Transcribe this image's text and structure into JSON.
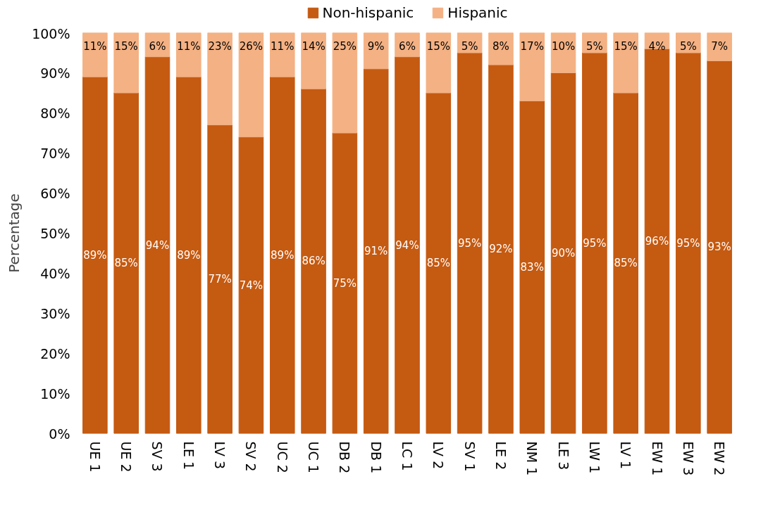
{
  "chart_data": {
    "type": "bar",
    "stacked": true,
    "ylabel": "Percentage",
    "legend": "top",
    "grid": false,
    "categories": [
      "UE 1",
      "UE 2",
      "SV 3",
      "LE 1",
      "LV 3",
      "SV 2",
      "UC 2",
      "UC 1",
      "DB 2",
      "DB 1",
      "LC 1",
      "LV 2",
      "SV 1",
      "LE 2",
      "NM 1",
      "LE 3",
      "LW 1",
      "LV 1",
      "EW 1",
      "EW 3",
      "EW 2"
    ],
    "series": [
      {
        "name": "Non-hispanic",
        "color": "#c55a11",
        "values": [
          89,
          85,
          94,
          89,
          77,
          74,
          89,
          86,
          75,
          91,
          94,
          85,
          95,
          92,
          83,
          90,
          95,
          85,
          96,
          95,
          93
        ],
        "value_labels": [
          "89%",
          "85%",
          "94%",
          "89%",
          "77%",
          "74%",
          "89%",
          "86%",
          "75%",
          "91%",
          "94%",
          "85%",
          "95%",
          "92%",
          "83%",
          "90%",
          "95%",
          "85%",
          "96%",
          "95%",
          "93%"
        ]
      },
      {
        "name": "Hispanic",
        "color": "#f4b183",
        "values": [
          11,
          15,
          6,
          11,
          23,
          26,
          11,
          14,
          25,
          9,
          6,
          15,
          5,
          8,
          17,
          10,
          5,
          15,
          4,
          5,
          7
        ],
        "value_labels": [
          "11%",
          "15%",
          "6%",
          "11%",
          "23%",
          "26%",
          "11%",
          "14%",
          "25%",
          "9%",
          "6%",
          "15%",
          "5%",
          "8%",
          "17%",
          "10%",
          "5%",
          "15%",
          "4%",
          "5%",
          "7%"
        ]
      }
    ],
    "ylim": [
      0,
      100
    ],
    "yticks": [
      {
        "value": 0,
        "label": "0%"
      },
      {
        "value": 10,
        "label": "10%"
      },
      {
        "value": 20,
        "label": "20%"
      },
      {
        "value": 30,
        "label": "30%"
      },
      {
        "value": 40,
        "label": "40%"
      },
      {
        "value": 50,
        "label": "50%"
      },
      {
        "value": 60,
        "label": "60%"
      },
      {
        "value": 70,
        "label": "70%"
      },
      {
        "value": 80,
        "label": "80%"
      },
      {
        "value": 90,
        "label": "90%"
      },
      {
        "value": 100,
        "label": "100%"
      }
    ]
  }
}
